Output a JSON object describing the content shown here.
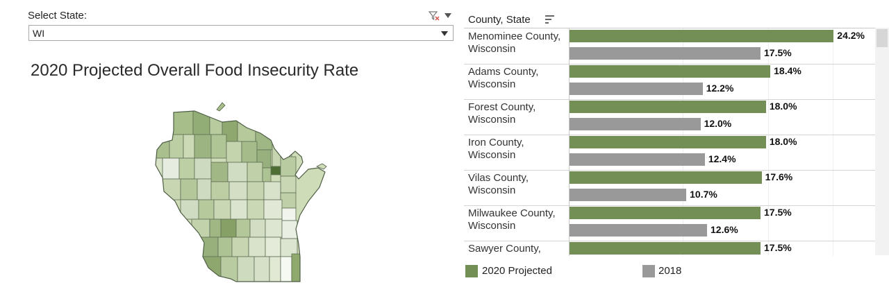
{
  "filter": {
    "label": "Select State:",
    "selected_value": "WI"
  },
  "map": {
    "title": "2020 Projected Overall Food Insecurity Rate"
  },
  "chart": {
    "column_header": "County, State"
  },
  "colors": {
    "projected": "#748f56",
    "y2018": "#999999"
  },
  "chart_data": {
    "type": "bar",
    "orientation": "horizontal",
    "value_format": "percent",
    "categories": [
      "Menominee County, Wisconsin",
      "Adams County, Wisconsin",
      "Forest County, Wisconsin",
      "Iron County, Wisconsin",
      "Vilas County, Wisconsin",
      "Milwaukee County, Wisconsin",
      "Sawyer County,"
    ],
    "series": [
      {
        "name": "2020 Projected",
        "values": [
          24.2,
          18.4,
          18.0,
          18.0,
          17.6,
          17.5,
          17.5
        ],
        "labels": [
          "24.2%",
          "18.4%",
          "18.0%",
          "18.0%",
          "17.6%",
          "17.5%",
          "17.5%"
        ]
      },
      {
        "name": "2018",
        "values": [
          17.5,
          12.2,
          12.0,
          12.4,
          10.7,
          12.6,
          null
        ],
        "labels": [
          "17.5%",
          "12.2%",
          "12.0%",
          "12.4%",
          "10.7%",
          "12.6%",
          ""
        ]
      }
    ],
    "xlim": [
      0,
      28
    ],
    "legend_position": "bottom"
  },
  "legend": [
    {
      "label": "2020 Projected"
    },
    {
      "label": "2018"
    }
  ]
}
